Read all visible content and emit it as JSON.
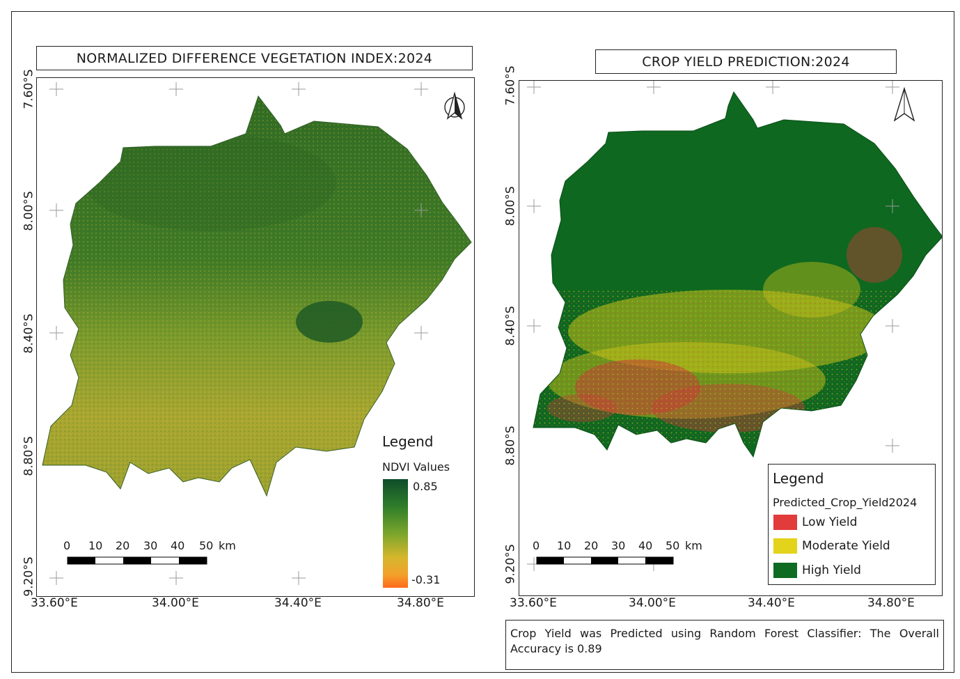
{
  "left_map": {
    "title": "NORMALIZED DIFFERENCE VEGETATION INDEX:2024",
    "lat_labels": [
      "7.60°S",
      "8.00°S",
      "8.40°S",
      "8.80°S",
      "9.20°S"
    ],
    "lon_labels": [
      "33.60°E",
      "34.00°E",
      "34.40°E",
      "34.80°E"
    ],
    "legend": {
      "title": "Legend",
      "subtitle": "NDVI Values",
      "max_label": "0.85",
      "min_label": "-0.31",
      "ramp_colors": [
        "#0f4d2a",
        "#2e7d2a",
        "#7aa52c",
        "#c9b52c",
        "#f2a12b",
        "#ff6a1a"
      ]
    },
    "scale_bar": {
      "ticks": [
        "0",
        "10",
        "20",
        "30",
        "40",
        "50"
      ],
      "unit": "km"
    }
  },
  "right_map": {
    "title": "CROP YIELD PREDICTION:2024",
    "lat_labels": [
      "7.60°S",
      "8.00°S",
      "8.40°S",
      "8.80°S",
      "9.20°S"
    ],
    "lon_labels": [
      "33.60°E",
      "34.00°E",
      "34.40°E",
      "34.80°E"
    ],
    "legend": {
      "title": "Legend",
      "subtitle": "Predicted_Crop_Yield2024",
      "classes": [
        {
          "label": "Low Yield",
          "color": "#e23b3b"
        },
        {
          "label": "Moderate Yield",
          "color": "#e3d31a"
        },
        {
          "label": "High Yield",
          "color": "#0f6b22"
        }
      ]
    },
    "scale_bar": {
      "ticks": [
        "0",
        "10",
        "20",
        "30",
        "40",
        "50"
      ],
      "unit": "km"
    }
  },
  "note": "Crop Yield was Predicted using Random Forest Classifier: The Overall Accuracy is 0.89",
  "colors": {
    "ndvi_dark": "#1e5a22",
    "ndvi_mid": "#6a9a2a",
    "ndvi_low": "#b8a62a",
    "yield_high": "#0f6b22",
    "yield_moderate": "#e3d31a",
    "yield_low": "#e23b3b"
  }
}
